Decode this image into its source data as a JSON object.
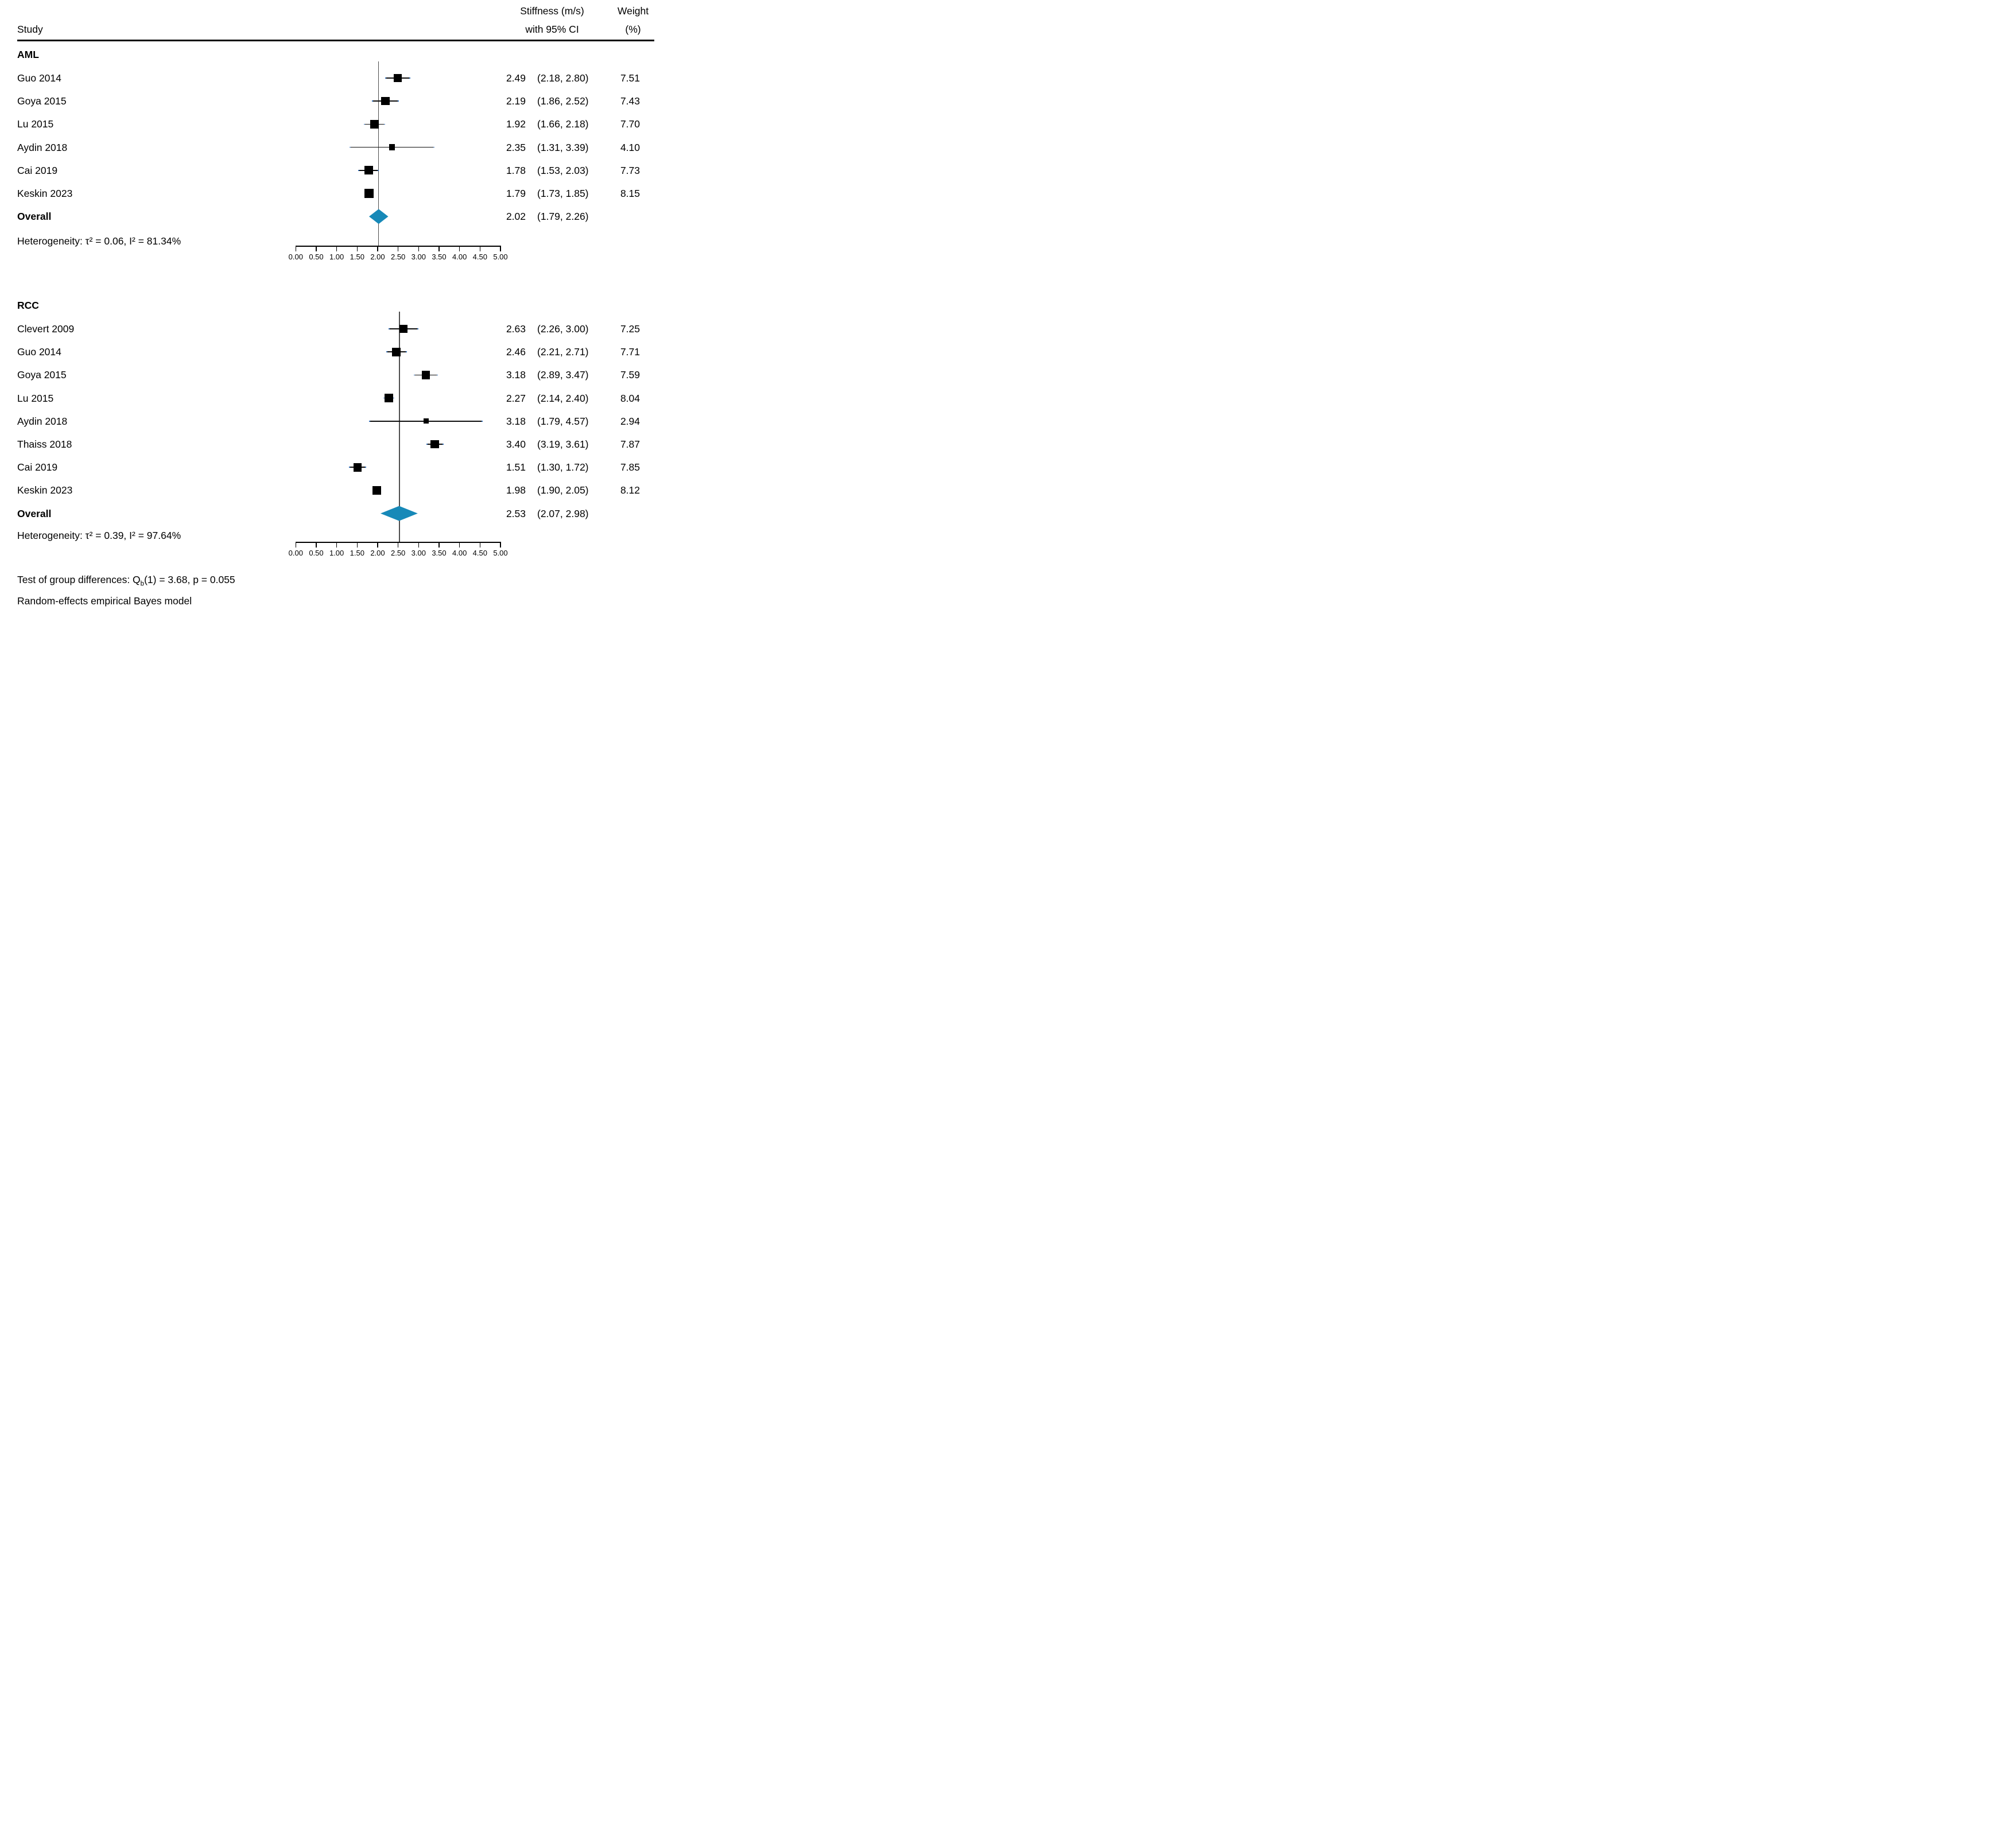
{
  "columns": {
    "study_header": "Study",
    "effect_header_line1": "Stiffness (m/s)",
    "effect_header_line2": "with 95% CI",
    "weight_header_line1": "Weight",
    "weight_header_line2": "(%)"
  },
  "chart_data": {
    "type": "forest",
    "effect_measure": "Stiffness (m/s)",
    "x_axis": {
      "min": 0,
      "max": 5,
      "tick_labels": [
        "0.00",
        "0.50",
        "1.00",
        "1.50",
        "2.00",
        "2.50",
        "3.00",
        "3.50",
        "4.00",
        "4.50",
        "5.00"
      ]
    },
    "groups": [
      {
        "name": "AML",
        "studies": [
          {
            "label": "Guo 2014",
            "estimate": 2.49,
            "ci_low": 2.18,
            "ci_high": 2.8,
            "weight": 7.51,
            "estimate_text": "2.49",
            "ci_text": "(2.18, 2.80)",
            "weight_text": "7.51"
          },
          {
            "label": "Goya 2015",
            "estimate": 2.19,
            "ci_low": 1.86,
            "ci_high": 2.52,
            "weight": 7.43,
            "estimate_text": "2.19",
            "ci_text": "(1.86, 2.52)",
            "weight_text": "7.43"
          },
          {
            "label": "Lu 2015",
            "estimate": 1.92,
            "ci_low": 1.66,
            "ci_high": 2.18,
            "weight": 7.7,
            "estimate_text": "1.92",
            "ci_text": "(1.66, 2.18)",
            "weight_text": "7.70"
          },
          {
            "label": "Aydin 2018",
            "estimate": 2.35,
            "ci_low": 1.31,
            "ci_high": 3.39,
            "weight": 4.1,
            "estimate_text": "2.35",
            "ci_text": "(1.31, 3.39)",
            "weight_text": "4.10"
          },
          {
            "label": "Cai 2019",
            "estimate": 1.78,
            "ci_low": 1.53,
            "ci_high": 2.03,
            "weight": 7.73,
            "estimate_text": "1.78",
            "ci_text": "(1.53, 2.03)",
            "weight_text": "7.73"
          },
          {
            "label": "Keskin 2023",
            "estimate": 1.79,
            "ci_low": 1.73,
            "ci_high": 1.85,
            "weight": 8.15,
            "estimate_text": "1.79",
            "ci_text": "(1.73, 1.85)",
            "weight_text": "8.15"
          }
        ],
        "overall": {
          "label": "Overall",
          "estimate": 2.02,
          "ci_low": 1.79,
          "ci_high": 2.26,
          "estimate_text": "2.02",
          "ci_text": "(1.79, 2.26)"
        },
        "heterogeneity_text": "Heterogeneity: τ² = 0.06, I² = 81.34%"
      },
      {
        "name": "RCC",
        "studies": [
          {
            "label": "Clevert 2009",
            "estimate": 2.63,
            "ci_low": 2.26,
            "ci_high": 3.0,
            "weight": 7.25,
            "estimate_text": "2.63",
            "ci_text": "(2.26, 3.00)",
            "weight_text": "7.25"
          },
          {
            "label": "Guo 2014",
            "estimate": 2.46,
            "ci_low": 2.21,
            "ci_high": 2.71,
            "weight": 7.71,
            "estimate_text": "2.46",
            "ci_text": "(2.21, 2.71)",
            "weight_text": "7.71"
          },
          {
            "label": "Goya 2015",
            "estimate": 3.18,
            "ci_low": 2.89,
            "ci_high": 3.47,
            "weight": 7.59,
            "estimate_text": "3.18",
            "ci_text": "(2.89, 3.47)",
            "weight_text": "7.59"
          },
          {
            "label": "Lu 2015",
            "estimate": 2.27,
            "ci_low": 2.14,
            "ci_high": 2.4,
            "weight": 8.04,
            "estimate_text": "2.27",
            "ci_text": "(2.14, 2.40)",
            "weight_text": "8.04"
          },
          {
            "label": "Aydin 2018",
            "estimate": 3.18,
            "ci_low": 1.79,
            "ci_high": 4.57,
            "weight": 2.94,
            "estimate_text": "3.18",
            "ci_text": "(1.79, 4.57)",
            "weight_text": "2.94"
          },
          {
            "label": "Thaiss 2018",
            "estimate": 3.4,
            "ci_low": 3.19,
            "ci_high": 3.61,
            "weight": 7.87,
            "estimate_text": "3.40",
            "ci_text": "(3.19, 3.61)",
            "weight_text": "7.87"
          },
          {
            "label": "Cai 2019",
            "estimate": 1.51,
            "ci_low": 1.3,
            "ci_high": 1.72,
            "weight": 7.85,
            "estimate_text": "1.51",
            "ci_text": "(1.30, 1.72)",
            "weight_text": "7.85"
          },
          {
            "label": "Keskin 2023",
            "estimate": 1.98,
            "ci_low": 1.9,
            "ci_high": 2.05,
            "weight": 8.12,
            "estimate_text": "1.98",
            "ci_text": "(1.90, 2.05)",
            "weight_text": "8.12"
          }
        ],
        "overall": {
          "label": "Overall",
          "estimate": 2.53,
          "ci_low": 2.07,
          "ci_high": 2.98,
          "estimate_text": "2.53",
          "ci_text": "(2.07, 2.98)"
        },
        "heterogeneity_text": "Heterogeneity: τ² = 0.39, I² = 97.64%"
      }
    ]
  },
  "footer": {
    "group_test": {
      "prefix": "Test of group differences: Q",
      "subscript": "b",
      "suffix": "(1) = 3.68, p = 0.055"
    },
    "model_text": "Random-effects empirical Bayes model"
  },
  "colors": {
    "diamond_fill": "#1789b8",
    "marker_fill": "#000000",
    "ref_line": "#4d4d4d",
    "ci_line": "#0d0d0d",
    "ci_cap": "#2a65ae",
    "rule": "#000000",
    "text": "#000000"
  }
}
